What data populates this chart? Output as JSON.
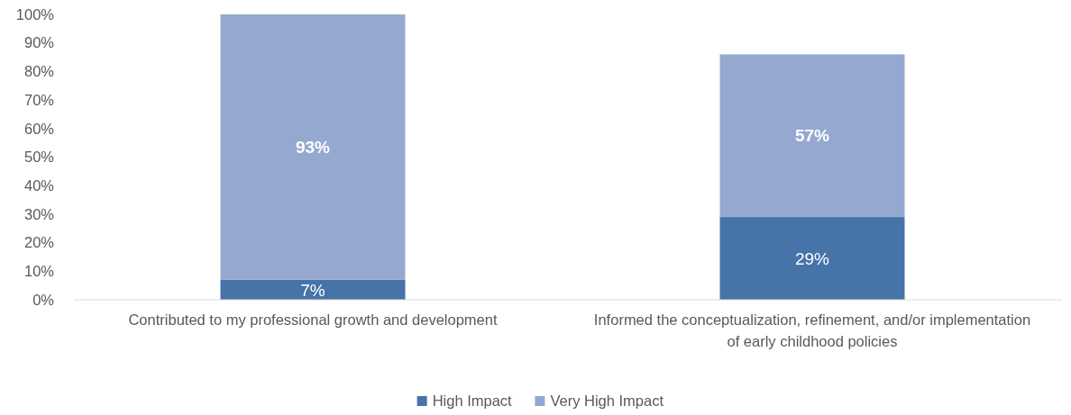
{
  "chart_data": {
    "type": "bar",
    "stacked": true,
    "categories": [
      "Contributed to my professional growth and development",
      "Informed the conceptualization, refinement, and/or implementation of early childhood policies"
    ],
    "series": [
      {
        "name": "High Impact",
        "color": "#4673a8",
        "values": [
          7,
          29
        ],
        "value_labels": [
          "7%",
          "29%"
        ]
      },
      {
        "name": "Very High Impact",
        "color": "#95a9d0",
        "values": [
          93,
          57
        ],
        "value_labels": [
          "93%",
          "57%"
        ]
      }
    ],
    "ylim": [
      0,
      100
    ],
    "yticks": [
      {
        "value": 0,
        "label": "0%"
      },
      {
        "value": 10,
        "label": "10%"
      },
      {
        "value": 20,
        "label": "20%"
      },
      {
        "value": 30,
        "label": "30%"
      },
      {
        "value": 40,
        "label": "40%"
      },
      {
        "value": 50,
        "label": "50%"
      },
      {
        "value": 60,
        "label": "60%"
      },
      {
        "value": 70,
        "label": "70%"
      },
      {
        "value": 80,
        "label": "80%"
      },
      {
        "value": 90,
        "label": "90%"
      },
      {
        "value": 100,
        "label": "100%"
      }
    ],
    "grid": false,
    "legend": "bottom"
  }
}
